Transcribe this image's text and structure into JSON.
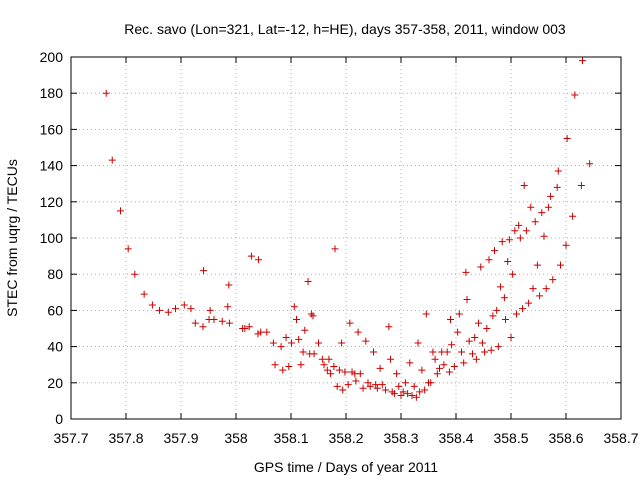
{
  "chart_data": {
    "type": "scatter",
    "title": "Rec. savo (Lon=321, Lat=-12, h=HE), days 357-358, 2011, window 003",
    "xlabel": "GPS time / Days of year 2011",
    "ylabel": "STEC from uqrg / TECUs",
    "xlim": [
      357.7,
      358.7
    ],
    "ylim": [
      0,
      200
    ],
    "xticks": [
      "357.7",
      "357.8",
      "357.9",
      "358",
      "358.1",
      "358.2",
      "358.3",
      "358.4",
      "358.5",
      "358.6",
      "358.7"
    ],
    "yticks": [
      "0",
      "20",
      "40",
      "60",
      "80",
      "100",
      "120",
      "140",
      "160",
      "180",
      "200"
    ],
    "grid": true,
    "marker": "plus",
    "color": "#cc0000",
    "points": [
      [
        357.764,
        180
      ],
      [
        357.775,
        143
      ],
      [
        357.79,
        115
      ],
      [
        357.804,
        94
      ],
      [
        357.816,
        80
      ],
      [
        357.833,
        69
      ],
      [
        357.848,
        63
      ],
      [
        357.861,
        60
      ],
      [
        357.877,
        59
      ],
      [
        357.89,
        61
      ],
      [
        357.906,
        63
      ],
      [
        357.918,
        61
      ],
      [
        357.926,
        53
      ],
      [
        357.94,
        51
      ],
      [
        357.951,
        55
      ],
      [
        357.96,
        55
      ],
      [
        357.975,
        54
      ],
      [
        357.988,
        53
      ],
      [
        357.985,
        62
      ],
      [
        357.987,
        74
      ],
      [
        357.941,
        82
      ],
      [
        357.953,
        60
      ],
      [
        358.012,
        50
      ],
      [
        358.016,
        50
      ],
      [
        358.024,
        51
      ],
      [
        358.028,
        90
      ],
      [
        358.041,
        88
      ],
      [
        358.04,
        47
      ],
      [
        358.045,
        48
      ],
      [
        358.056,
        48
      ],
      [
        358.068,
        42
      ],
      [
        358.071,
        30
      ],
      [
        358.082,
        40
      ],
      [
        358.085,
        27
      ],
      [
        358.091,
        45
      ],
      [
        358.096,
        29
      ],
      [
        358.101,
        42
      ],
      [
        358.106,
        62
      ],
      [
        358.11,
        55
      ],
      [
        358.114,
        44
      ],
      [
        358.118,
        30
      ],
      [
        358.122,
        37
      ],
      [
        358.125,
        49
      ],
      [
        358.131,
        76
      ],
      [
        358.134,
        36
      ],
      [
        358.137,
        58
      ],
      [
        358.14,
        57
      ],
      [
        358.142,
        36
      ],
      [
        358.15,
        42
      ],
      [
        358.157,
        33
      ],
      [
        358.16,
        30
      ],
      [
        358.166,
        27
      ],
      [
        358.169,
        33
      ],
      [
        358.172,
        25
      ],
      [
        358.178,
        29
      ],
      [
        358.18,
        94
      ],
      [
        358.184,
        18
      ],
      [
        358.188,
        27
      ],
      [
        358.192,
        42
      ],
      [
        358.194,
        16
      ],
      [
        358.198,
        26
      ],
      [
        358.204,
        19
      ],
      [
        358.207,
        53
      ],
      [
        358.211,
        26
      ],
      [
        358.216,
        25
      ],
      [
        358.218,
        21
      ],
      [
        358.222,
        48
      ],
      [
        358.226,
        25
      ],
      [
        358.231,
        17
      ],
      [
        358.236,
        43
      ],
      [
        358.24,
        20
      ],
      [
        358.244,
        18
      ],
      [
        358.25,
        37
      ],
      [
        358.254,
        19
      ],
      [
        358.257,
        17
      ],
      [
        358.262,
        28
      ],
      [
        358.266,
        19
      ],
      [
        358.272,
        16
      ],
      [
        358.278,
        51
      ],
      [
        358.281,
        33
      ],
      [
        358.284,
        15
      ],
      [
        358.288,
        14
      ],
      [
        358.292,
        25
      ],
      [
        358.296,
        18
      ],
      [
        358.3,
        13
      ],
      [
        358.304,
        15
      ],
      [
        358.308,
        20
      ],
      [
        358.312,
        14
      ],
      [
        358.316,
        31
      ],
      [
        358.32,
        13
      ],
      [
        358.324,
        18
      ],
      [
        358.328,
        12
      ],
      [
        358.331,
        42
      ],
      [
        358.334,
        15
      ],
      [
        358.338,
        27
      ],
      [
        358.343,
        16
      ],
      [
        358.346,
        58
      ],
      [
        358.35,
        20
      ],
      [
        358.354,
        20
      ],
      [
        358.358,
        37
      ],
      [
        358.362,
        33
      ],
      [
        358.366,
        25
      ],
      [
        358.37,
        28
      ],
      [
        358.374,
        37
      ],
      [
        358.378,
        30
      ],
      [
        358.384,
        37
      ],
      [
        358.388,
        26
      ],
      [
        358.39,
        55
      ],
      [
        358.392,
        41
      ],
      [
        358.397,
        29
      ],
      [
        358.403,
        48
      ],
      [
        358.406,
        58
      ],
      [
        358.41,
        37
      ],
      [
        358.414,
        31
      ],
      [
        358.418,
        81
      ],
      [
        358.42,
        66
      ],
      [
        358.424,
        43
      ],
      [
        358.43,
        36
      ],
      [
        358.434,
        45
      ],
      [
        358.437,
        33
      ],
      [
        358.441,
        53
      ],
      [
        358.445,
        84
      ],
      [
        358.448,
        42
      ],
      [
        358.452,
        37
      ],
      [
        358.456,
        50
      ],
      [
        358.46,
        88
      ],
      [
        358.464,
        38
      ],
      [
        358.467,
        57
      ],
      [
        358.47,
        93
      ],
      [
        358.474,
        60
      ],
      [
        358.477,
        40
      ],
      [
        358.481,
        73
      ],
      [
        358.484,
        98
      ],
      [
        358.488,
        67
      ],
      [
        358.49,
        55
      ],
      [
        358.494,
        87
      ],
      [
        358.497,
        99
      ],
      [
        358.5,
        45
      ],
      [
        358.503,
        80
      ],
      [
        358.507,
        104
      ],
      [
        358.51,
        58
      ],
      [
        358.514,
        107
      ],
      [
        358.517,
        100
      ],
      [
        358.521,
        61
      ],
      [
        358.524,
        129
      ],
      [
        358.528,
        104
      ],
      [
        358.532,
        64
      ],
      [
        358.536,
        117
      ],
      [
        358.54,
        72
      ],
      [
        358.544,
        109
      ],
      [
        358.548,
        85
      ],
      [
        358.552,
        68
      ],
      [
        358.556,
        114
      ],
      [
        358.56,
        101
      ],
      [
        358.564,
        72
      ],
      [
        358.568,
        117
      ],
      [
        358.572,
        123
      ],
      [
        358.576,
        77
      ],
      [
        358.584,
        128
      ],
      [
        358.586,
        137
      ],
      [
        358.59,
        85
      ],
      [
        358.6,
        96
      ],
      [
        358.602,
        155
      ],
      [
        358.612,
        112
      ],
      [
        358.616,
        179
      ],
      [
        358.628,
        129
      ],
      [
        358.63,
        198
      ],
      [
        358.643,
        141
      ]
    ]
  }
}
